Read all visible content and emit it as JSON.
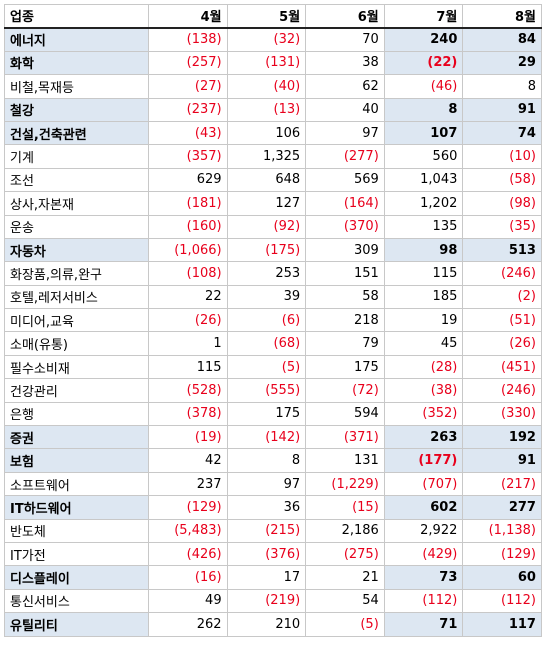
{
  "table": {
    "header": {
      "industry": "업종",
      "months": [
        "4월",
        "5월",
        "6월",
        "7월",
        "8월"
      ]
    },
    "rows": [
      {
        "name": "에너지",
        "highlight": true,
        "values": [
          "(138)",
          "(32)",
          "70",
          "240",
          "84"
        ]
      },
      {
        "name": "화학",
        "highlight": true,
        "values": [
          "(257)",
          "(131)",
          "38",
          "(22)",
          "29"
        ]
      },
      {
        "name": "비철,목재등",
        "highlight": false,
        "values": [
          "(27)",
          "(40)",
          "62",
          "(46)",
          "8"
        ]
      },
      {
        "name": "철강",
        "highlight": true,
        "values": [
          "(237)",
          "(13)",
          "40",
          "8",
          "91"
        ]
      },
      {
        "name": "건설,건축관련",
        "highlight": true,
        "values": [
          "(43)",
          "106",
          "97",
          "107",
          "74"
        ]
      },
      {
        "name": "기계",
        "highlight": false,
        "values": [
          "(357)",
          "1,325",
          "(277)",
          "560",
          "(10)"
        ]
      },
      {
        "name": "조선",
        "highlight": false,
        "values": [
          "629",
          "648",
          "569",
          "1,043",
          "(58)"
        ]
      },
      {
        "name": "상사,자본재",
        "highlight": false,
        "values": [
          "(181)",
          "127",
          "(164)",
          "1,202",
          "(98)"
        ]
      },
      {
        "name": "운송",
        "highlight": false,
        "values": [
          "(160)",
          "(92)",
          "(370)",
          "135",
          "(35)"
        ]
      },
      {
        "name": "자동차",
        "highlight": true,
        "values": [
          "(1,066)",
          "(175)",
          "309",
          "98",
          "513"
        ]
      },
      {
        "name": "화장품,의류,완구",
        "highlight": false,
        "values": [
          "(108)",
          "253",
          "151",
          "115",
          "(246)"
        ]
      },
      {
        "name": "호텔,레저서비스",
        "highlight": false,
        "values": [
          "22",
          "39",
          "58",
          "185",
          "(2)"
        ]
      },
      {
        "name": "미디어,교육",
        "highlight": false,
        "values": [
          "(26)",
          "(6)",
          "218",
          "19",
          "(51)"
        ]
      },
      {
        "name": "소매(유통)",
        "highlight": false,
        "values": [
          "1",
          "(68)",
          "79",
          "45",
          "(26)"
        ]
      },
      {
        "name": "필수소비재",
        "highlight": false,
        "values": [
          "115",
          "(5)",
          "175",
          "(28)",
          "(451)"
        ]
      },
      {
        "name": "건강관리",
        "highlight": false,
        "values": [
          "(528)",
          "(555)",
          "(72)",
          "(38)",
          "(246)"
        ]
      },
      {
        "name": "은행",
        "highlight": false,
        "values": [
          "(378)",
          "175",
          "594",
          "(352)",
          "(330)"
        ]
      },
      {
        "name": "증권",
        "highlight": true,
        "values": [
          "(19)",
          "(142)",
          "(371)",
          "263",
          "192"
        ]
      },
      {
        "name": "보험",
        "highlight": true,
        "values": [
          "42",
          "8",
          "131",
          "(177)",
          "91"
        ]
      },
      {
        "name": "소프트웨어",
        "highlight": false,
        "values": [
          "237",
          "97",
          "(1,229)",
          "(707)",
          "(217)"
        ]
      },
      {
        "name": "IT하드웨어",
        "highlight": true,
        "values": [
          "(129)",
          "36",
          "(15)",
          "602",
          "277"
        ]
      },
      {
        "name": "반도체",
        "highlight": false,
        "values": [
          "(5,483)",
          "(215)",
          "2,186",
          "2,922",
          "(1,138)"
        ]
      },
      {
        "name": "IT가전",
        "highlight": false,
        "values": [
          "(426)",
          "(376)",
          "(275)",
          "(429)",
          "(129)"
        ]
      },
      {
        "name": "디스플레이",
        "highlight": true,
        "values": [
          "(16)",
          "17",
          "21",
          "73",
          "60"
        ]
      },
      {
        "name": "통신서비스",
        "highlight": false,
        "values": [
          "49",
          "(219)",
          "54",
          "(112)",
          "(112)"
        ]
      },
      {
        "name": "유틸리티",
        "highlight": true,
        "values": [
          "262",
          "210",
          "(5)",
          "71",
          "117"
        ]
      }
    ]
  },
  "colors": {
    "negative": "#e8001c",
    "highlight_fill": "#dde7f2",
    "text": "#000000"
  }
}
